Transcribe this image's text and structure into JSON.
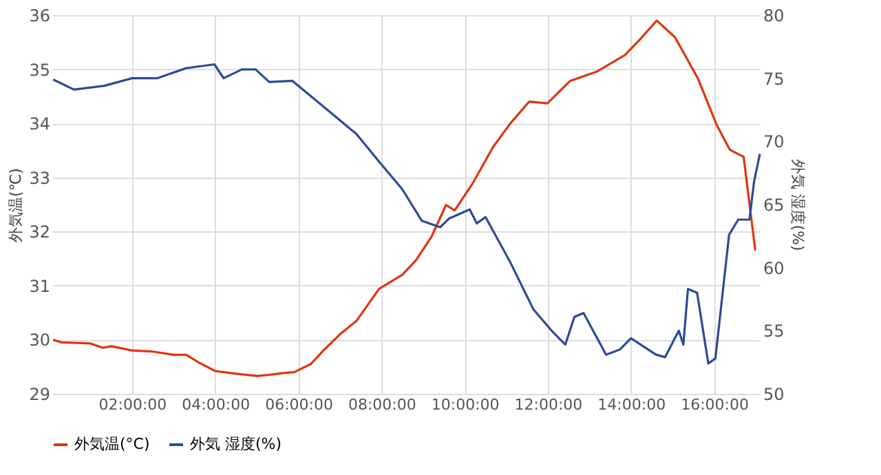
{
  "chart_data": {
    "type": "line",
    "xlabel": null,
    "ylabel": "外気温(℃)",
    "y2label": "外気 湿度(%)",
    "xlim": [
      0.08,
      17.1
    ],
    "xticks": [
      {
        "value": 2,
        "label": "02:00:00"
      },
      {
        "value": 4,
        "label": "04:00:00"
      },
      {
        "value": 6,
        "label": "06:00:00"
      },
      {
        "value": 8,
        "label": "08:00:00"
      },
      {
        "value": 10,
        "label": "10:00:00"
      },
      {
        "value": 12,
        "label": "12:00:00"
      },
      {
        "value": 14,
        "label": "14:00:00"
      },
      {
        "value": 16,
        "label": "16:00:00"
      }
    ],
    "ylim": [
      29,
      36
    ],
    "yticks": [
      29,
      30,
      31,
      32,
      33,
      34,
      35,
      36
    ],
    "y2lim": [
      50,
      80
    ],
    "y2ticks": [
      50,
      55,
      60,
      65,
      70,
      75,
      80
    ],
    "grid": true,
    "legend": "bottom",
    "marker": "none",
    "line_style": "solid",
    "series": [
      {
        "name": "外気温(°C)",
        "color": "#e0340f",
        "x": [
          0.1,
          0.3,
          1.0,
          1.3,
          1.5,
          2.0,
          2.5,
          3.0,
          3.3,
          3.6,
          4.0,
          4.5,
          5.0,
          5.3,
          5.6,
          5.9,
          6.3,
          6.6,
          7.0,
          7.4,
          7.94,
          8.5,
          8.83,
          9.2,
          9.55,
          9.76,
          10.2,
          10.68,
          11.1,
          11.55,
          11.99,
          12.53,
          13.19,
          13.85,
          14.18,
          14.62,
          15.06,
          15.61,
          16.05,
          16.38,
          16.71,
          16.99
        ],
        "values": [
          30.0,
          29.95,
          29.93,
          29.85,
          29.88,
          29.8,
          29.78,
          29.72,
          29.72,
          29.58,
          29.42,
          29.37,
          29.33,
          29.35,
          29.38,
          29.4,
          29.55,
          29.8,
          30.1,
          30.35,
          30.94,
          31.2,
          31.47,
          31.9,
          32.49,
          32.39,
          32.9,
          33.56,
          34.0,
          34.4,
          34.37,
          34.78,
          34.96,
          35.26,
          35.52,
          35.9,
          35.59,
          34.83,
          33.99,
          33.51,
          33.38,
          31.65
        ]
      },
      {
        "name": "外気 湿度(%)",
        "color": "#2b4a9a",
        "axis": "y2",
        "x": [
          0.1,
          0.6,
          1.33,
          2.0,
          2.6,
          3.3,
          3.98,
          4.2,
          4.64,
          4.97,
          5.3,
          5.85,
          6.4,
          6.84,
          7.39,
          7.94,
          8.5,
          8.97,
          9.41,
          9.63,
          10.12,
          10.29,
          10.5,
          11.1,
          11.65,
          12.09,
          12.42,
          12.64,
          12.86,
          13.4,
          13.73,
          14.0,
          14.6,
          14.82,
          15.15,
          15.26,
          15.37,
          15.59,
          15.86,
          16.03,
          16.36,
          16.58,
          16.85,
          16.96,
          17.1
        ],
        "values": [
          74.9,
          74.1,
          74.4,
          75.0,
          75.0,
          75.8,
          76.1,
          75.0,
          75.7,
          75.7,
          74.7,
          74.8,
          73.3,
          72.1,
          70.6,
          68.4,
          66.2,
          63.7,
          63.2,
          63.9,
          64.6,
          63.5,
          64.0,
          60.4,
          56.7,
          55.0,
          53.9,
          56.1,
          56.4,
          53.1,
          53.5,
          54.4,
          53.1,
          52.9,
          55.0,
          53.9,
          58.3,
          58.0,
          52.4,
          52.8,
          62.6,
          63.8,
          63.8,
          66.8,
          69.0
        ]
      }
    ]
  }
}
